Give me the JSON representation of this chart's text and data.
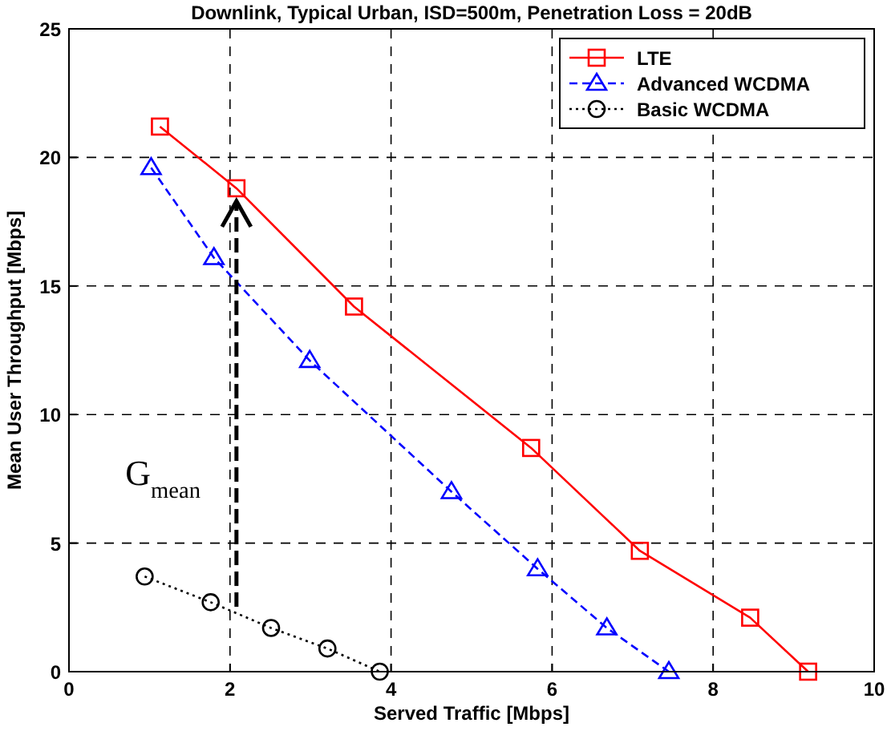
{
  "chart_data": {
    "type": "line",
    "title": "Downlink, Typical Urban, ISD=500m, Penetration Loss = 20dB",
    "xlabel": "Served Traffic [Mbps]",
    "ylabel": "Mean User Throughput [Mbps]",
    "xlim": [
      0,
      10
    ],
    "xticks": [
      0,
      2,
      4,
      6,
      8,
      10
    ],
    "ylim": [
      0,
      25
    ],
    "yticks": [
      0,
      5,
      10,
      15,
      20,
      25
    ],
    "grid": true,
    "legend": "top right",
    "series": [
      {
        "name": "LTE",
        "color": "#ff0000",
        "marker": "square",
        "line_style": "solid",
        "x": [
          1.13,
          2.08,
          3.54,
          5.74,
          7.09,
          8.46,
          9.18
        ],
        "values": [
          21.2,
          18.8,
          14.2,
          8.7,
          4.7,
          2.1,
          0
        ]
      },
      {
        "name": "Advanced WCDMA",
        "color": "#0000ff",
        "marker": "triangle",
        "line_style": "dashed",
        "x": [
          1.02,
          1.8,
          2.99,
          4.75,
          5.82,
          6.68,
          7.45
        ],
        "values": [
          19.6,
          16.1,
          12.1,
          7.0,
          4.0,
          1.7,
          0
        ]
      },
      {
        "name": "Basic WCDMA",
        "color": "#000000",
        "marker": "circle",
        "line_style": "dotted",
        "x": [
          0.94,
          1.76,
          2.51,
          3.21,
          3.86
        ],
        "values": [
          3.7,
          2.7,
          1.7,
          0.9,
          0
        ]
      }
    ],
    "annotations": [
      "G$_{mean}$"
    ]
  }
}
